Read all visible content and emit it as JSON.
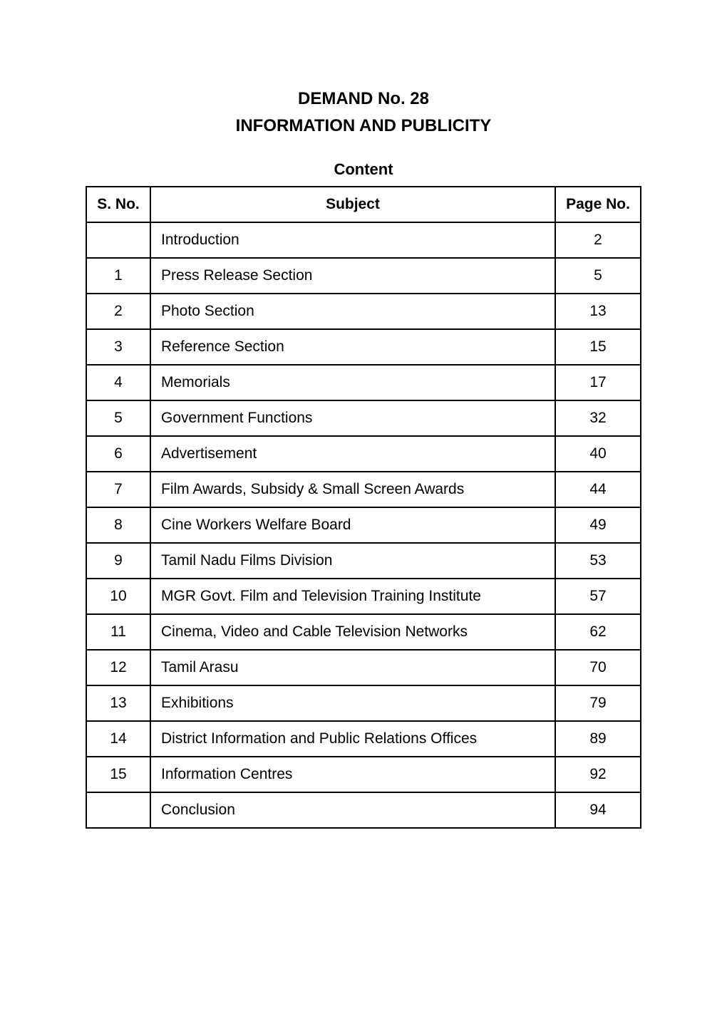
{
  "title": {
    "line1": "DEMAND No. 28",
    "line2": "INFORMATION AND PUBLICITY"
  },
  "content_label": "Content",
  "headers": {
    "sno": "S. No.",
    "subject": "Subject",
    "page": "Page No."
  },
  "rows": [
    {
      "sno": "",
      "subject": "Introduction",
      "page": "2"
    },
    {
      "sno": "1",
      "subject": "Press Release Section",
      "page": "5"
    },
    {
      "sno": "2",
      "subject": "Photo Section",
      "page": "13"
    },
    {
      "sno": "3",
      "subject": "Reference Section",
      "page": "15"
    },
    {
      "sno": "4",
      "subject": "Memorials",
      "page": "17"
    },
    {
      "sno": "5",
      "subject": "Government Functions",
      "page": "32"
    },
    {
      "sno": "6",
      "subject": "Advertisement",
      "page": "40"
    },
    {
      "sno": "7",
      "subject": "Film Awards, Subsidy & Small Screen Awards",
      "page": "44"
    },
    {
      "sno": "8",
      "subject": "Cine Workers Welfare Board",
      "page": "49"
    },
    {
      "sno": "9",
      "subject": "Tamil Nadu Films Division",
      "page": "53"
    },
    {
      "sno": "10",
      "subject": "MGR Govt. Film and Television Training Institute",
      "page": "57"
    },
    {
      "sno": "11",
      "subject": "Cinema, Video and Cable Television Networks",
      "page": "62"
    },
    {
      "sno": "12",
      "subject": "Tamil Arasu",
      "page": "70"
    },
    {
      "sno": "13",
      "subject": "Exhibitions",
      "page": "79"
    },
    {
      "sno": "14",
      "subject": "District Information and Public Relations Offices",
      "page": "89"
    },
    {
      "sno": "15",
      "subject": "Information Centres",
      "page": "92"
    },
    {
      "sno": "",
      "subject": "Conclusion",
      "page": "94"
    }
  ]
}
